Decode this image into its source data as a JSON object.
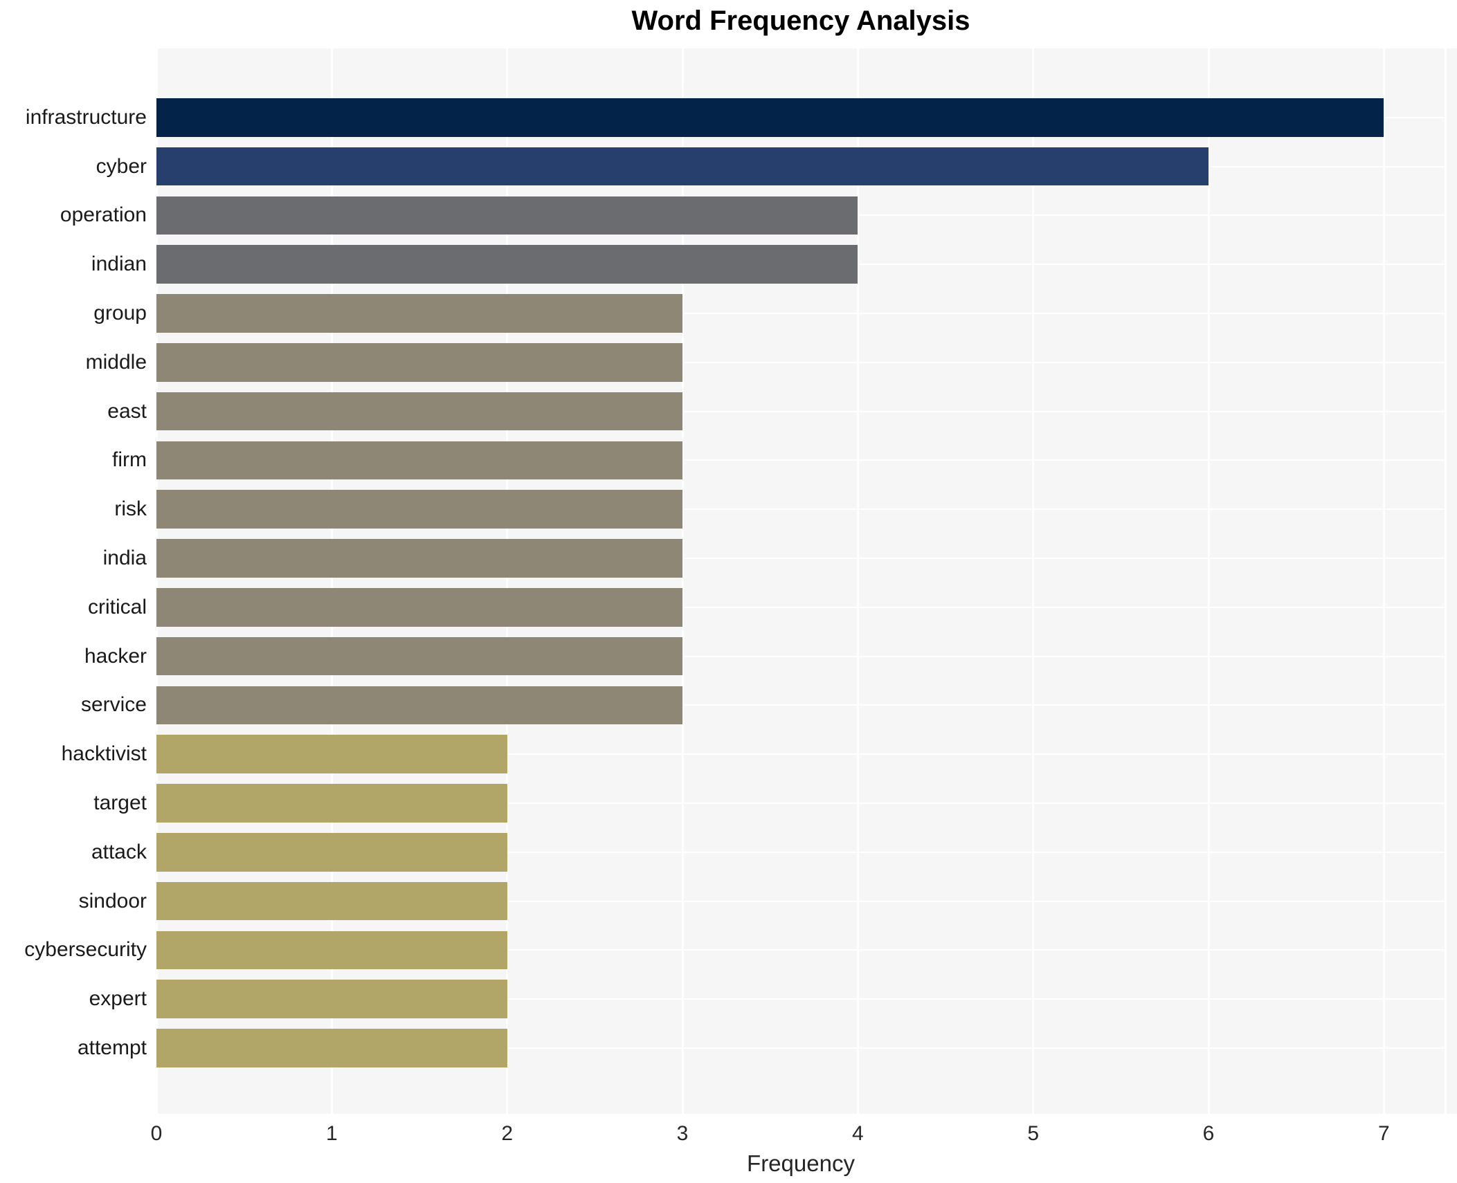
{
  "title": "Word Frequency Analysis",
  "chart_data": {
    "type": "bar",
    "orientation": "horizontal",
    "title": "Word Frequency Analysis",
    "xlabel": "Frequency",
    "ylabel": "",
    "categories": [
      "infrastructure",
      "cyber",
      "operation",
      "indian",
      "group",
      "middle",
      "east",
      "firm",
      "risk",
      "india",
      "critical",
      "hacker",
      "service",
      "hacktivist",
      "target",
      "attack",
      "sindoor",
      "cybersecurity",
      "expert",
      "attempt"
    ],
    "values": [
      7,
      6,
      4,
      4,
      3,
      3,
      3,
      3,
      3,
      3,
      3,
      3,
      3,
      2,
      2,
      2,
      2,
      2,
      2,
      2
    ],
    "xticks": [
      "0",
      "1",
      "2",
      "3",
      "4",
      "5",
      "6",
      "7"
    ],
    "xlim": [
      0,
      7.35
    ],
    "grid": true,
    "legend": false,
    "colors": {
      "plot_background": "#f6f6f7",
      "figure_background": "#ffffff",
      "gridline": "#ffffff",
      "title_text": "#000000",
      "axis_text": "#262626",
      "category_text": "#1a1a1a",
      "bar_color_by_value": {
        "7": "#032349",
        "6": "#273f6c",
        "4": "#6b6c70",
        "3": "#8e8776",
        "2": "#b1a667"
      }
    }
  }
}
